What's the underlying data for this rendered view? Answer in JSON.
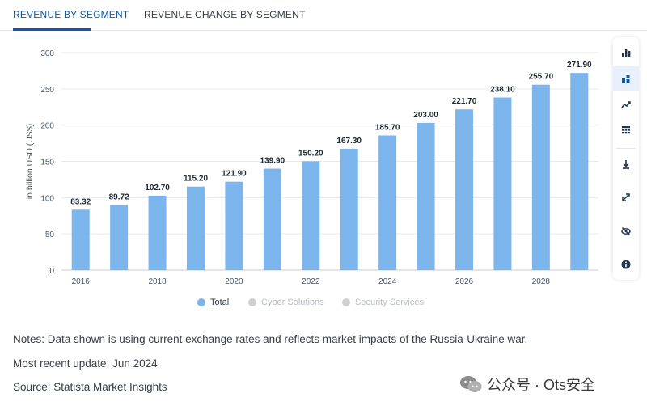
{
  "tabs": {
    "active_label": "REVENUE BY SEGMENT",
    "inactive_label": "REVENUE CHANGE BY SEGMENT"
  },
  "chart_data": {
    "type": "bar",
    "categories": [
      "2016",
      "2017",
      "2018",
      "2019",
      "2020",
      "2021",
      "2022",
      "2023",
      "2024",
      "2025",
      "2026",
      "2027",
      "2028",
      "2029"
    ],
    "x_tick_labels": [
      "2016",
      "2018",
      "2020",
      "2022",
      "2024",
      "2026",
      "2028"
    ],
    "series": [
      {
        "name": "Total",
        "values": [
          83.32,
          89.72,
          102.7,
          115.2,
          121.9,
          139.9,
          150.2,
          167.3,
          185.7,
          203.0,
          221.7,
          238.1,
          255.7,
          271.9
        ],
        "labels": [
          "83.32",
          "89.72",
          "102.70",
          "115.20",
          "121.90",
          "139.90",
          "150.20",
          "167.30",
          "185.70",
          "203.00",
          "221.70",
          "238.10",
          "255.70",
          "271.90"
        ]
      }
    ],
    "ylabel": "in billion USD (US$)",
    "xlabel": "",
    "ylim": [
      0,
      300
    ],
    "y_ticks": [
      0,
      50,
      100,
      150,
      200,
      250,
      300
    ],
    "grid": true,
    "bar_color": "#7cb5ec"
  },
  "legend": {
    "items": [
      {
        "label": "Total",
        "color": "#7cb5ec",
        "active": true
      },
      {
        "label": "Cyber Solutions",
        "color": "#cccccc",
        "active": false
      },
      {
        "label": "Security Services",
        "color": "#cccccc",
        "active": false
      }
    ]
  },
  "toolbar": {
    "icons": [
      "bar-chart-icon",
      "stacked-bar-icon",
      "trend-line-icon",
      "table-icon",
      "download-icon",
      "expand-icon",
      "hide-icon",
      "info-icon"
    ]
  },
  "notes": {
    "note": "Notes: Data shown is using current exchange rates and reflects market impacts of the Russia-Ukraine war.",
    "update": "Most recent update: Jun 2024",
    "source": "Source: Statista Market Insights"
  },
  "watermark": {
    "text": "公众号 · Ots安全"
  }
}
